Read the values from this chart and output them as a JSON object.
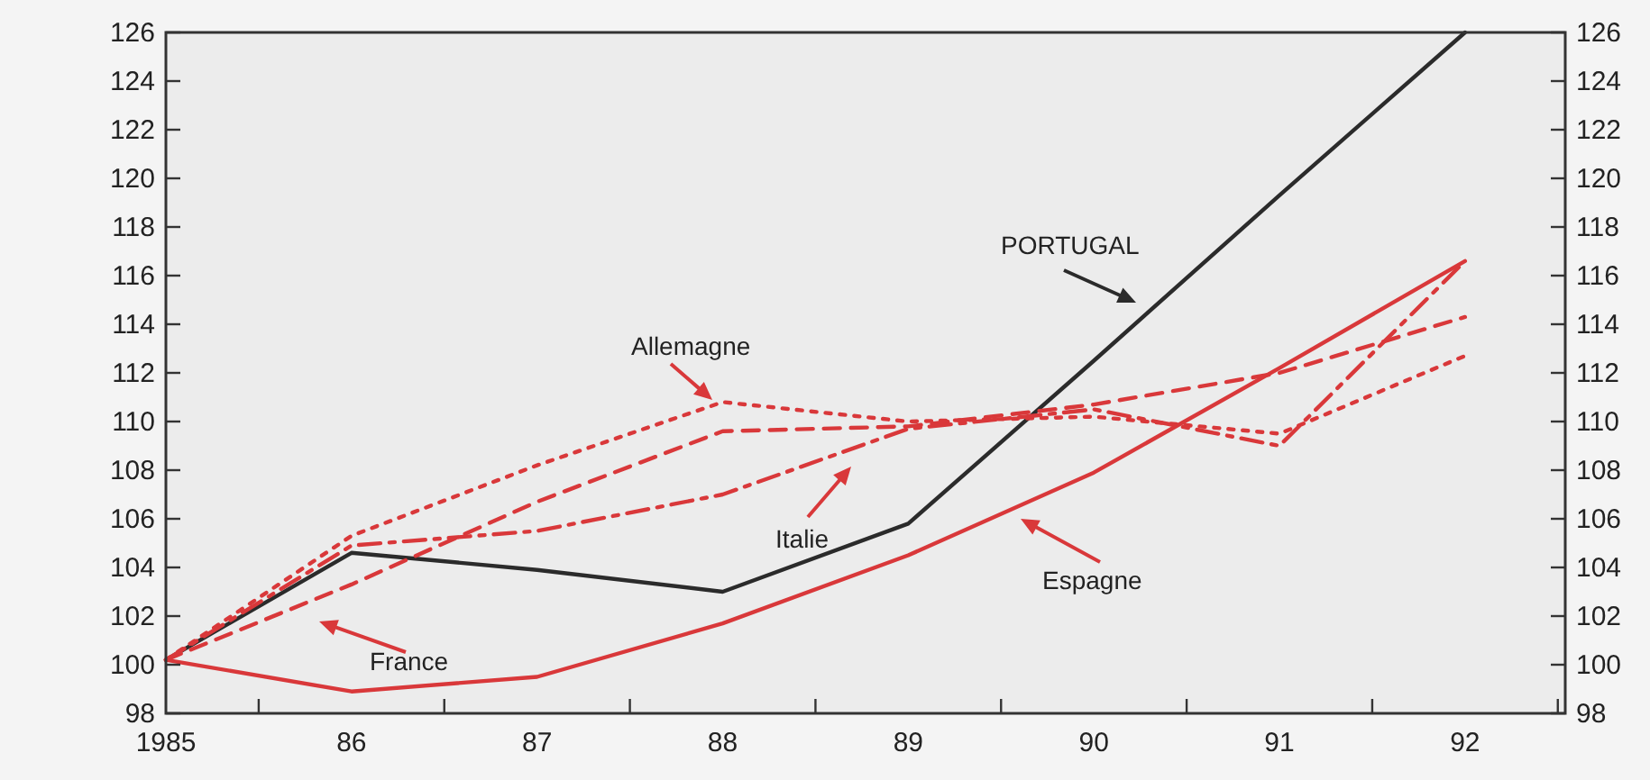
{
  "chart_data": {
    "type": "line",
    "x": [
      1985,
      1986,
      1987,
      1988,
      1989,
      1990,
      1991,
      1992
    ],
    "xlim": [
      1985,
      1992.54
    ],
    "xticks": [
      {
        "value": 1985,
        "label": "1985"
      },
      {
        "value": 1985.5,
        "label": null
      },
      {
        "value": 1986,
        "label": "86"
      },
      {
        "value": 1986.5,
        "label": null
      },
      {
        "value": 1987,
        "label": "87"
      },
      {
        "value": 1987.5,
        "label": null
      },
      {
        "value": 1988,
        "label": "88"
      },
      {
        "value": 1988.5,
        "label": null
      },
      {
        "value": 1989,
        "label": "89"
      },
      {
        "value": 1989.5,
        "label": null
      },
      {
        "value": 1990,
        "label": "90"
      },
      {
        "value": 1990.5,
        "label": null
      },
      {
        "value": 1991,
        "label": "91"
      },
      {
        "value": 1991.5,
        "label": null
      },
      {
        "value": 1992,
        "label": "92"
      },
      {
        "value": 1992.5,
        "label": null
      }
    ],
    "ylim": [
      98,
      126
    ],
    "yticks": [
      98,
      100,
      102,
      104,
      106,
      108,
      110,
      112,
      114,
      116,
      118,
      120,
      122,
      124,
      126
    ],
    "y2lim": [
      98,
      126
    ],
    "y2ticks": [
      98,
      100,
      102,
      104,
      106,
      108,
      110,
      112,
      114,
      116,
      118,
      120,
      122,
      124,
      126
    ],
    "grid": false,
    "legend": "bottom",
    "marker": "none",
    "series": [
      {
        "name": "PORTUGAL",
        "color": "#2b2b2b",
        "line_style": "solid",
        "values": [
          100.2,
          104.6,
          103.9,
          103.0,
          105.8,
          112.5,
          119.3,
          126.0
        ]
      },
      {
        "name": "Espagne",
        "color": "#d9383a",
        "line_style": "solid",
        "values": [
          100.2,
          98.9,
          99.5,
          101.7,
          104.5,
          107.9,
          112.2,
          116.6
        ]
      },
      {
        "name": "Allemagne",
        "color": "#d9383a",
        "line_style": "dotted",
        "values": [
          100.2,
          105.3,
          108.2,
          110.8,
          110.0,
          110.2,
          109.5,
          112.7
        ]
      },
      {
        "name": "France",
        "color": "#d9383a",
        "line_style": "dashed",
        "values": [
          100.2,
          103.3,
          106.7,
          109.6,
          109.8,
          110.7,
          112.0,
          114.3
        ]
      },
      {
        "name": "Italie",
        "color": "#d9383a",
        "line_style": "dashdot",
        "values": [
          100.2,
          104.9,
          105.5,
          107.0,
          109.7,
          110.5,
          109.0,
          116.6
        ]
      }
    ]
  }
}
